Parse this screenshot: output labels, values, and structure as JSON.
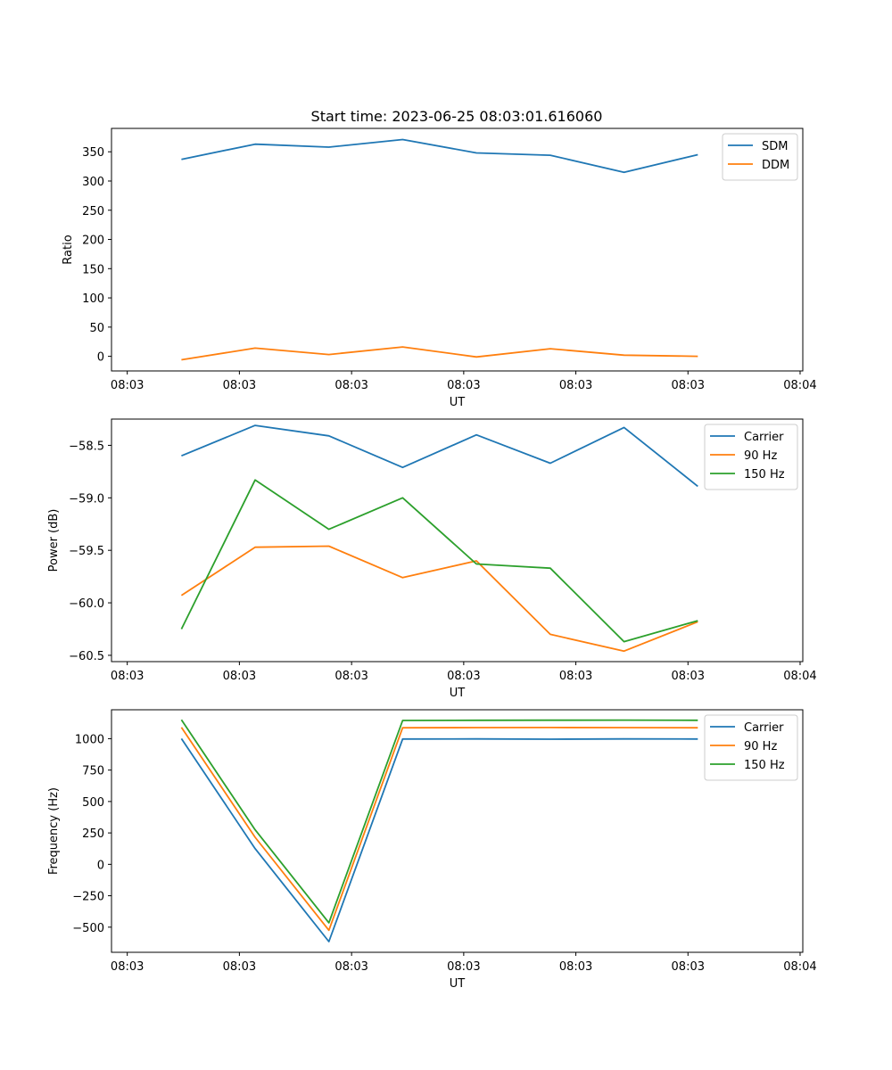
{
  "figure": {
    "title": "Start time: 2023-06-25 08:03:01.616060"
  },
  "chart_data": [
    {
      "type": "line",
      "title": "Start time: 2023-06-25 08:03:01.616060",
      "xlabel": "UT",
      "ylabel": "Ratio",
      "x_ticks": [
        "08:03",
        "08:03",
        "08:03",
        "08:03",
        "08:03",
        "08:03",
        "08:04"
      ],
      "y_ticks": [
        0,
        50,
        100,
        150,
        200,
        250,
        300,
        350
      ],
      "ylim": [
        -25,
        390
      ],
      "legend_position": "top-right",
      "series": [
        {
          "name": "SDM",
          "color": "#1f77b4",
          "values": [
            337,
            363,
            358,
            371,
            348,
            344,
            315,
            345
          ]
        },
        {
          "name": "DDM",
          "color": "#ff7f0e",
          "values": [
            -6,
            14,
            3,
            16,
            -1,
            13,
            2,
            0
          ]
        }
      ]
    },
    {
      "type": "line",
      "xlabel": "UT",
      "ylabel": "Power (dB)",
      "x_ticks": [
        "08:03",
        "08:03",
        "08:03",
        "08:03",
        "08:03",
        "08:03",
        "08:04"
      ],
      "y_ticks": [
        -58.5,
        -59.0,
        -59.5,
        -60.0,
        -60.5
      ],
      "y_tick_labels": [
        "−58.5",
        "−59.0",
        "−59.5",
        "−60.0",
        "−60.5"
      ],
      "ylim": [
        -60.56,
        -58.25
      ],
      "legend_position": "top-right",
      "series": [
        {
          "name": "Carrier",
          "color": "#1f77b4",
          "values": [
            -58.6,
            -58.31,
            -58.41,
            -58.71,
            -58.4,
            -58.67,
            -58.33,
            -58.89
          ]
        },
        {
          "name": "90 Hz",
          "color": "#ff7f0e",
          "values": [
            -59.93,
            -59.47,
            -59.46,
            -59.76,
            -59.6,
            -60.3,
            -60.46,
            -60.18
          ]
        },
        {
          "name": "150 Hz",
          "color": "#2ca02c",
          "values": [
            -60.25,
            -58.83,
            -59.3,
            -59.0,
            -59.63,
            -59.67,
            -60.37,
            -60.17
          ]
        }
      ]
    },
    {
      "type": "line",
      "xlabel": "UT",
      "ylabel": "Frequency (Hz)",
      "x_ticks": [
        "08:03",
        "08:03",
        "08:03",
        "08:03",
        "08:03",
        "08:03",
        "08:04"
      ],
      "y_ticks": [
        1000,
        750,
        500,
        250,
        0,
        -250,
        -500
      ],
      "y_tick_labels": [
        "1000",
        "750",
        "500",
        "250",
        "0",
        "−250",
        "−500"
      ],
      "ylim": [
        -700,
        1230
      ],
      "legend_position": "top-right",
      "series": [
        {
          "name": "Carrier",
          "color": "#1f77b4",
          "values": [
            1000,
            125,
            -615,
            997,
            998,
            996,
            998,
            997
          ]
        },
        {
          "name": "90 Hz",
          "color": "#ff7f0e",
          "values": [
            1090,
            215,
            -525,
            1087,
            1088,
            1089,
            1088,
            1087
          ]
        },
        {
          "name": "150 Hz",
          "color": "#2ca02c",
          "values": [
            1150,
            275,
            -465,
            1145,
            1146,
            1147,
            1148,
            1146
          ]
        }
      ]
    }
  ]
}
